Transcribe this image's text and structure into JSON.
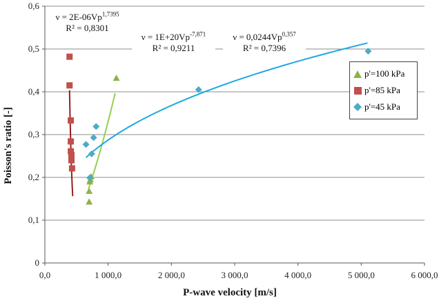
{
  "chart_data": {
    "type": "scatter",
    "xlabel": "P-wave velocity [m/s]",
    "ylabel": "Poisson's ratio [-]",
    "xlim": [
      0,
      6000
    ],
    "ylim": [
      0,
      0.6
    ],
    "x_ticks": [
      "0,0",
      "1 000,0",
      "2 000,0",
      "3 000,0",
      "4 000,0",
      "5 000,0",
      "6 000,0"
    ],
    "y_ticks": [
      "0",
      "0,1",
      "0,2",
      "0,3",
      "0,4",
      "0,5",
      "0,6"
    ],
    "grid": "horizontal",
    "legend_position": "right",
    "series": [
      {
        "name": "p'=100 kPa",
        "marker": "triangle",
        "color": "#8DB344",
        "trend_color": "#92D050",
        "points": [
          [
            700,
            0.143
          ],
          [
            700,
            0.168
          ],
          [
            710,
            0.19
          ],
          [
            720,
            0.195
          ],
          [
            730,
            0.202
          ],
          [
            1130,
            0.432
          ]
        ],
        "trend_x_range": [
          690,
          1110
        ],
        "trend": {
          "type": "power",
          "a": 2e-06,
          "b": 1.7395
        },
        "equation_text": "ν = 2E-06Vp",
        "exponent_text": "1,7395",
        "r2_text": "R² = 0,8301",
        "box_border": "#92D050"
      },
      {
        "name": "p'=85 kPa",
        "marker": "square",
        "color": "#C0504D",
        "trend_color": "#9B1B1B",
        "points": [
          [
            390,
            0.482
          ],
          [
            390,
            0.415
          ],
          [
            410,
            0.333
          ],
          [
            410,
            0.284
          ],
          [
            410,
            0.261
          ],
          [
            420,
            0.252
          ],
          [
            420,
            0.24
          ],
          [
            430,
            0.221
          ]
        ],
        "trend_x_range": [
          390,
          440
        ],
        "trend": {
          "type": "power",
          "a": 1e+20,
          "b": -7.871
        },
        "equation_text": "ν = 1E+20Vp",
        "exponent_text": "-7,871",
        "r2_text": "R² = 0,9211",
        "box_border": "#9B1B1B"
      },
      {
        "name": "p'=45 kPa",
        "marker": "diamond",
        "color": "#4BACC6",
        "trend_color": "#1FA7E0",
        "points": [
          [
            650,
            0.277
          ],
          [
            710,
            0.199
          ],
          [
            740,
            0.255
          ],
          [
            770,
            0.293
          ],
          [
            810,
            0.319
          ],
          [
            2430,
            0.405
          ],
          [
            5110,
            0.495
          ]
        ],
        "trend_x_range": [
          650,
          5100
        ],
        "trend": {
          "type": "power",
          "a": 0.0244,
          "b": 0.357
        },
        "equation_text": "ν = 0,0244Vp",
        "exponent_text": "0,357",
        "r2_text": "R² = 0,7396",
        "box_border": "#1FA7E0"
      }
    ]
  }
}
